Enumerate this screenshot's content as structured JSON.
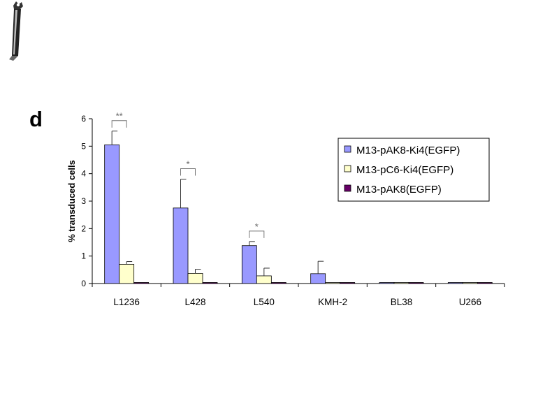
{
  "panel_label": "d",
  "colors": {
    "axis": "#000000",
    "error_bar": "#333333",
    "significance": "#777777",
    "logo": "#222222"
  },
  "logo": {
    "icon": "pen-logo-icon"
  },
  "chart_data": {
    "type": "bar",
    "title": "",
    "xlabel": "",
    "ylabel": "% transduced cells",
    "ylim": [
      0,
      6
    ],
    "yticks": [
      "0",
      "1",
      "2",
      "3",
      "4",
      "5",
      "6"
    ],
    "grid": false,
    "legend_position": "top-right",
    "categories": [
      "L1236",
      "L428",
      "L540",
      "KMH-2",
      "BL38",
      "U266"
    ],
    "series": [
      {
        "name": "M13-pAK8-Ki4(EGFP)",
        "color": "#9999ff",
        "values": [
          5.05,
          2.75,
          1.38,
          0.36,
          0.02,
          0.02
        ],
        "errors": [
          0.5,
          1.05,
          0.15,
          0.45,
          0,
          0
        ]
      },
      {
        "name": "M13-pC6-Ki4(EGFP)",
        "color": "#ffffcc",
        "values": [
          0.7,
          0.37,
          0.28,
          0.03,
          0.02,
          0.02
        ],
        "errors": [
          0.1,
          0.15,
          0.28,
          0,
          0,
          0
        ]
      },
      {
        "name": "M13-pAK8(EGFP)",
        "color": "#660066",
        "values": [
          0.03,
          0.03,
          0.03,
          0.03,
          0.02,
          0.02
        ],
        "errors": [
          0,
          0,
          0,
          0,
          0,
          0
        ]
      }
    ],
    "significance": [
      {
        "category": "L1236",
        "label": "**"
      },
      {
        "category": "L428",
        "label": "*"
      },
      {
        "category": "L540",
        "label": "*"
      }
    ]
  }
}
